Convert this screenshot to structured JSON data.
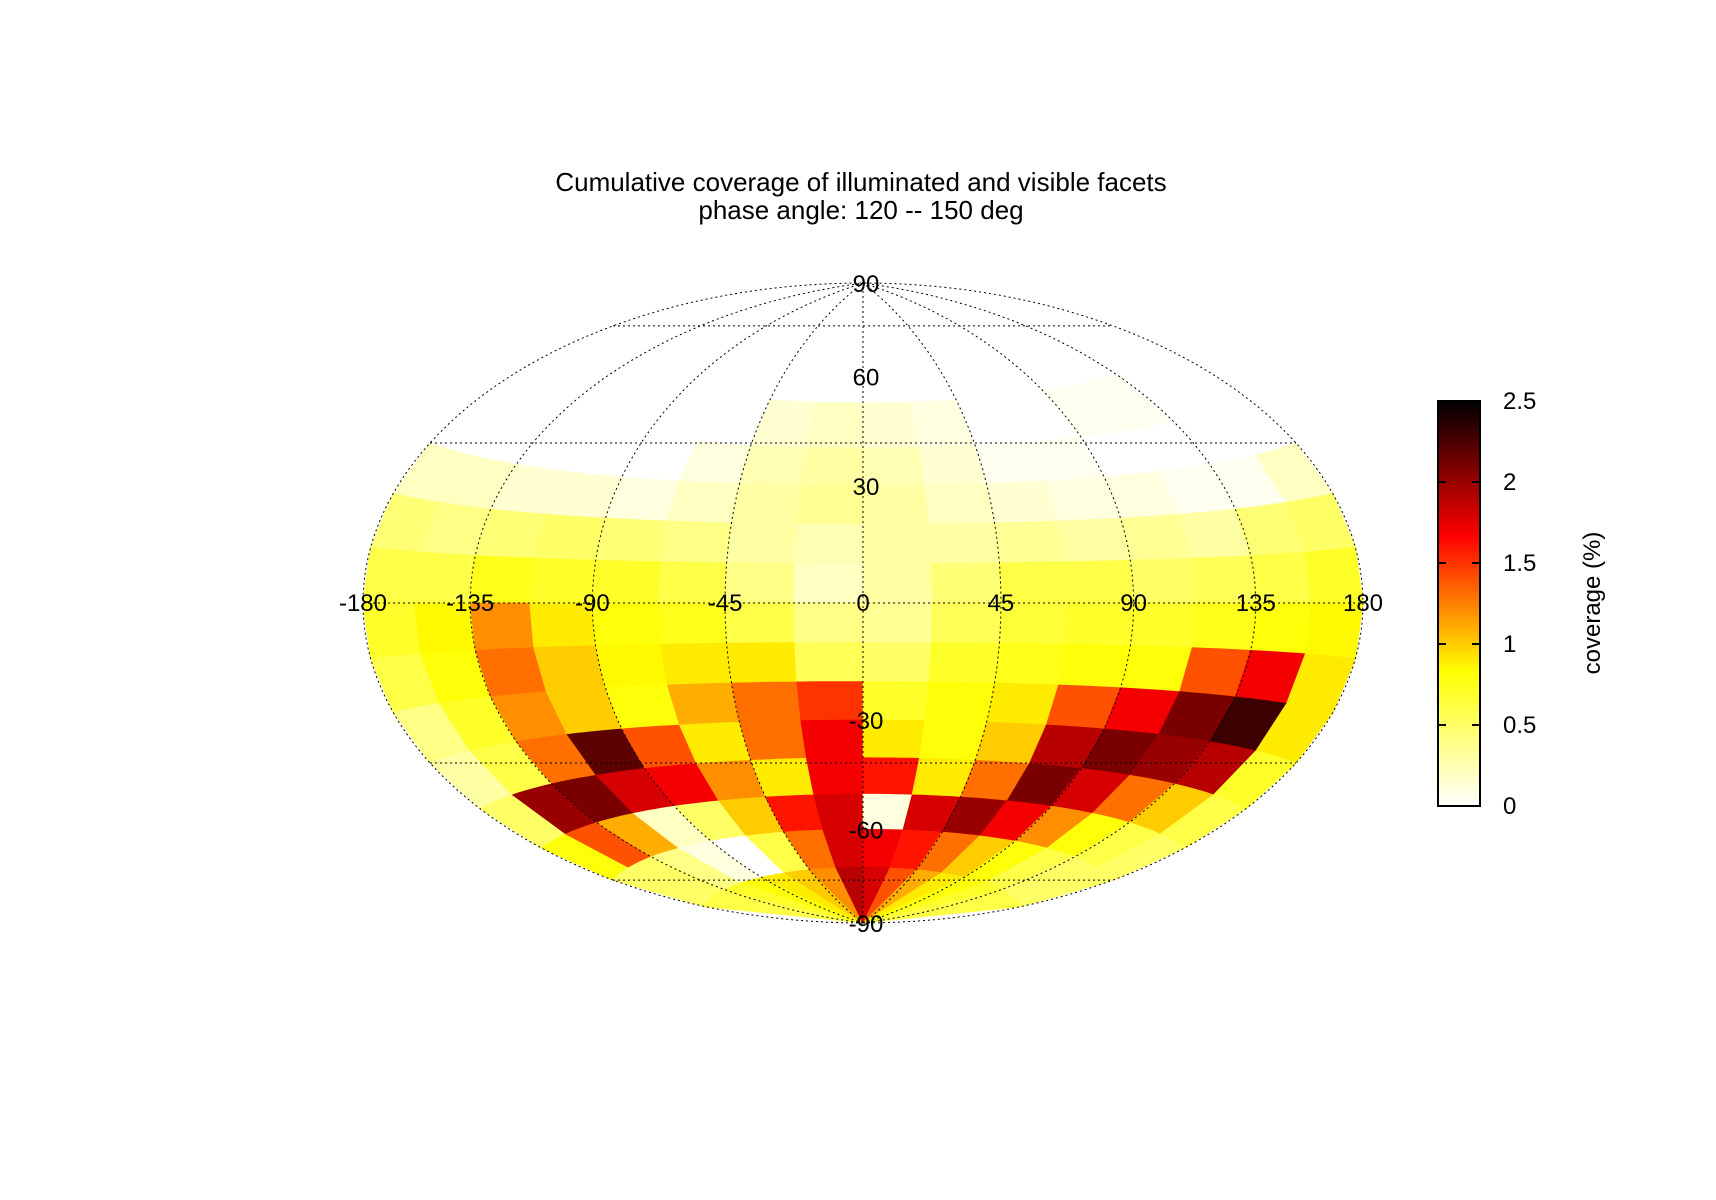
{
  "chart_data": {
    "type": "heatmap",
    "projection": "hammer-aitoff",
    "title": "Cumulative coverage of illuminated and visible facets",
    "subtitle": "phase angle: 120 -- 150 deg",
    "x_ticks": [
      "-180",
      "-135",
      "-90",
      "-45",
      "0",
      "45",
      "90",
      "135",
      "180"
    ],
    "x_tick_values": [
      -180,
      -135,
      -90,
      -45,
      0,
      45,
      90,
      135,
      180
    ],
    "y_ticks": [
      "90",
      "60",
      "30",
      "-30",
      "-60",
      "-90"
    ],
    "y_tick_values": [
      90,
      60,
      30,
      -30,
      -60,
      -90
    ],
    "xlim": [
      -180,
      180
    ],
    "ylim": [
      -90,
      90
    ],
    "grid": true,
    "colorbar": {
      "label": "coverage (%)",
      "ticks": [
        "0",
        "0.5",
        "1",
        "1.5",
        "2",
        "2.5"
      ],
      "tick_values": [
        0,
        0.5,
        1,
        1.5,
        2,
        2.5
      ],
      "range": [
        0,
        2.5
      ],
      "placement": "right",
      "colormap": [
        "#ffffff",
        "#ffff00",
        "#ff0000",
        "#000000"
      ]
    },
    "lat_bands": [
      80,
      60,
      45,
      35,
      25,
      15,
      5,
      -5,
      -15,
      -25,
      -35,
      -45,
      -55,
      -65,
      -78
    ],
    "lon_step_deg": 22.5,
    "lon_start_deg": -180,
    "cells": [
      [
        0,
        0,
        0,
        0,
        0,
        0,
        0,
        0,
        0,
        0,
        0,
        0,
        0,
        0,
        0,
        0
      ],
      [
        0,
        0,
        0,
        0,
        0,
        0,
        0,
        0,
        0,
        0,
        0,
        0,
        0,
        0,
        0,
        0
      ],
      [
        0,
        0,
        0,
        0,
        0,
        0,
        0.15,
        0.2,
        0.15,
        0.1,
        0,
        0,
        0.05,
        0.05,
        0,
        0
      ],
      [
        0,
        0,
        0,
        0,
        0,
        0.1,
        0.25,
        0.3,
        0.25,
        0.15,
        0.05,
        0.05,
        0,
        0,
        0,
        0
      ],
      [
        0.2,
        0.2,
        0.15,
        0.15,
        0.1,
        0.2,
        0.3,
        0.35,
        0.3,
        0.2,
        0.15,
        0.1,
        0.1,
        0.05,
        0.05,
        0.2
      ],
      [
        0.45,
        0.4,
        0.45,
        0.5,
        0.45,
        0.4,
        0.3,
        0.25,
        0.3,
        0.3,
        0.35,
        0.3,
        0.35,
        0.3,
        0.45,
        0.5
      ],
      [
        0.6,
        0.6,
        0.75,
        0.7,
        0.7,
        0.6,
        0.4,
        0.2,
        0.3,
        0.45,
        0.6,
        0.6,
        0.5,
        0.55,
        0.6,
        0.7
      ],
      [
        0.7,
        0.85,
        1.2,
        0.9,
        0.8,
        0.75,
        0.6,
        0.4,
        0.35,
        0.55,
        0.65,
        0.7,
        0.7,
        0.75,
        0.8,
        0.85
      ],
      [
        0.6,
        0.8,
        1.3,
        1.0,
        0.85,
        0.9,
        0.9,
        0.55,
        0.5,
        0.7,
        0.75,
        0.8,
        0.8,
        1.4,
        1.7,
        0.9
      ],
      [
        0.4,
        0.7,
        1.2,
        1.0,
        0.8,
        1.1,
        1.3,
        1.5,
        0.7,
        0.8,
        0.9,
        1.4,
        1.7,
        2.1,
        2.3,
        0.9
      ],
      [
        0.3,
        0.6,
        1.3,
        2.2,
        1.4,
        0.9,
        1.3,
        1.7,
        0.9,
        0.8,
        1.0,
        1.9,
        2.1,
        2.0,
        1.9,
        0.7
      ],
      [
        0.5,
        2.0,
        2.1,
        1.8,
        1.7,
        1.2,
        0.9,
        1.7,
        1.6,
        0.9,
        1.3,
        2.1,
        1.8,
        1.3,
        1.0,
        0.6
      ],
      [
        0.8,
        1.4,
        1.1,
        0.2,
        0.5,
        1.0,
        1.6,
        1.8,
        0.1,
        1.8,
        2.0,
        1.7,
        1.2,
        0.8,
        0.6,
        0.5
      ],
      [
        0.5,
        0.5,
        0.4,
        0.1,
        0.0,
        0.6,
        1.3,
        1.8,
        1.7,
        1.6,
        1.3,
        1.0,
        0.8,
        0.6,
        0.5,
        0.5
      ],
      [
        0.6,
        0.6,
        0.7,
        0.8,
        0.9,
        1.0,
        1.2,
        1.9,
        1.8,
        1.4,
        1.1,
        0.9,
        0.8,
        0.7,
        0.6,
        0.6
      ]
    ]
  }
}
